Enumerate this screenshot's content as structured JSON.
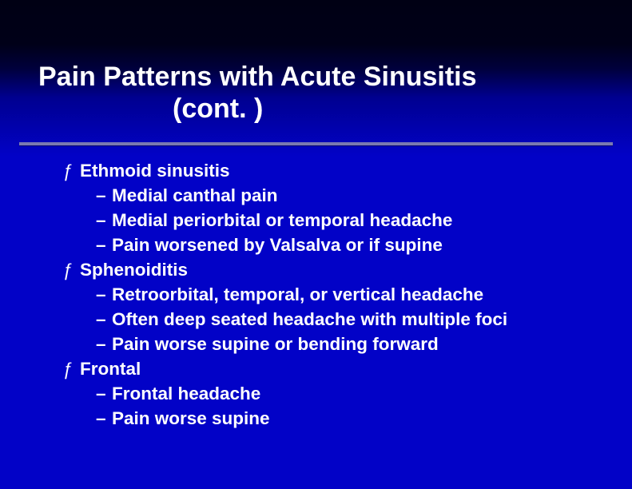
{
  "slide": {
    "title_line1": "Pain Patterns with Acute Sinusitis",
    "title_line2": "(cont. )",
    "title_color": "#ffffff",
    "title_fontsize": 34,
    "underline_color": "#7a7ab0",
    "body_fontsize": 22.5,
    "body_color": "#ffffff",
    "background_top": "#000014",
    "background_bottom": "#0202c7",
    "sections": [
      {
        "heading": "Ethmoid sinusitis",
        "items": [
          "Medial canthal pain",
          "Medial periorbital or temporal headache",
          "Pain worsened by Valsalva or if supine"
        ]
      },
      {
        "heading": "Sphenoiditis",
        "items": [
          "Retroorbital, temporal, or vertical headache",
          "Often deep seated headache with multiple foci",
          "Pain worse supine or bending forward"
        ]
      },
      {
        "heading": "Frontal",
        "items": [
          "Frontal headache",
          "Pain worse supine"
        ]
      }
    ]
  }
}
